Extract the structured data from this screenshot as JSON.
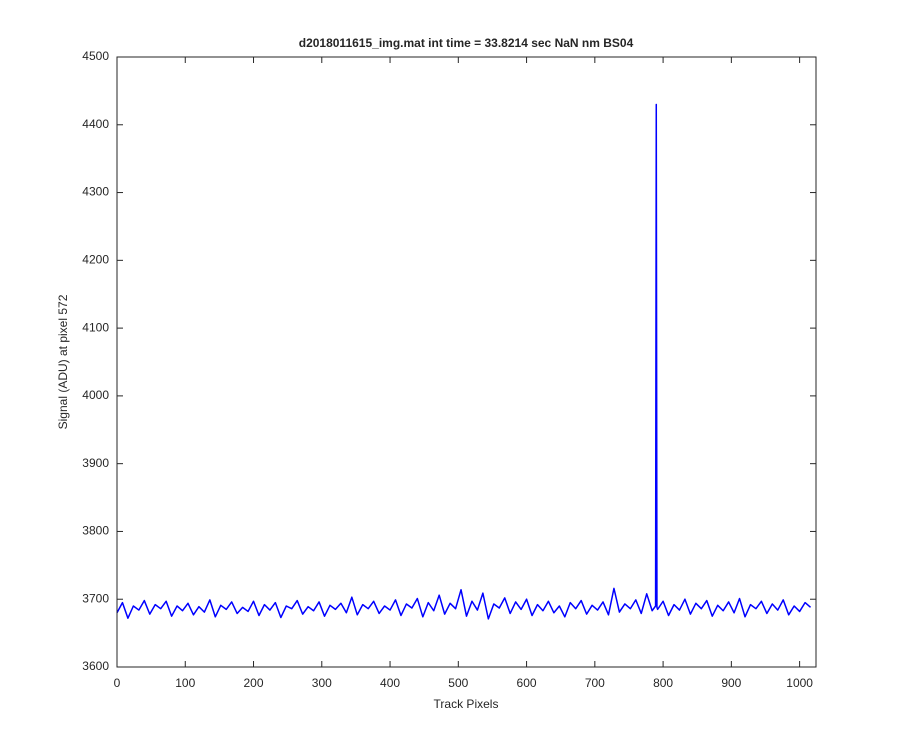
{
  "chart_data": {
    "type": "line",
    "title": "d2018011615_img.mat int time = 33.8214 sec  NaN nm BS04",
    "xlabel": "Track Pixels",
    "ylabel": "Signal (ADU) at pixel 572",
    "color": "#0000ff",
    "xlim": [
      0,
      1024
    ],
    "ylim": [
      3600,
      4500
    ],
    "xticks": [
      0,
      100,
      200,
      300,
      400,
      500,
      600,
      700,
      800,
      900,
      1000
    ],
    "yticks": [
      3600,
      3700,
      3800,
      3900,
      4000,
      4100,
      4200,
      4300,
      4400,
      4500
    ],
    "grid": false,
    "x": [
      0,
      8,
      16,
      24,
      32,
      40,
      48,
      56,
      64,
      72,
      80,
      88,
      96,
      104,
      112,
      120,
      128,
      136,
      144,
      152,
      160,
      168,
      176,
      184,
      192,
      200,
      208,
      216,
      224,
      232,
      240,
      248,
      256,
      264,
      272,
      280,
      288,
      296,
      304,
      312,
      320,
      328,
      336,
      344,
      352,
      360,
      368,
      376,
      384,
      392,
      400,
      408,
      416,
      424,
      432,
      440,
      448,
      456,
      464,
      472,
      480,
      488,
      496,
      504,
      512,
      520,
      528,
      536,
      544,
      552,
      560,
      568,
      576,
      584,
      592,
      600,
      608,
      616,
      624,
      632,
      640,
      648,
      656,
      664,
      672,
      680,
      688,
      696,
      704,
      712,
      720,
      728,
      736,
      744,
      752,
      760,
      768,
      776,
      784,
      789,
      790,
      791,
      792,
      800,
      808,
      816,
      824,
      832,
      840,
      848,
      856,
      864,
      872,
      880,
      888,
      896,
      904,
      912,
      920,
      928,
      936,
      944,
      952,
      960,
      968,
      976,
      984,
      992,
      1000,
      1008,
      1016
    ],
    "values": [
      3680,
      3695,
      3672,
      3690,
      3684,
      3698,
      3678,
      3692,
      3686,
      3697,
      3675,
      3690,
      3683,
      3694,
      3677,
      3689,
      3681,
      3699,
      3674,
      3691,
      3685,
      3696,
      3679,
      3688,
      3682,
      3697,
      3676,
      3692,
      3684,
      3695,
      3673,
      3690,
      3686,
      3698,
      3678,
      3689,
      3683,
      3696,
      3675,
      3691,
      3685,
      3694,
      3680,
      3703,
      3677,
      3692,
      3686,
      3697,
      3679,
      3690,
      3684,
      3699,
      3676,
      3693,
      3687,
      3701,
      3674,
      3695,
      3683,
      3706,
      3678,
      3694,
      3686,
      3714,
      3675,
      3697,
      3684,
      3709,
      3671,
      3693,
      3687,
      3702,
      3679,
      3696,
      3685,
      3700,
      3676,
      3692,
      3683,
      3697,
      3680,
      3690,
      3674,
      3695,
      3686,
      3698,
      3678,
      3691,
      3684,
      3696,
      3677,
      3716,
      3681,
      3693,
      3686,
      3699,
      3679,
      3708,
      3683,
      3690,
      4430,
      3688,
      3685,
      3697,
      3676,
      3692,
      3684,
      3700,
      3678,
      3694,
      3686,
      3698,
      3675,
      3691,
      3683,
      3696,
      3680,
      3701,
      3674,
      3692,
      3686,
      3697,
      3679,
      3693,
      3684,
      3699,
      3677,
      3690,
      3682,
      3695,
      3688
    ]
  }
}
